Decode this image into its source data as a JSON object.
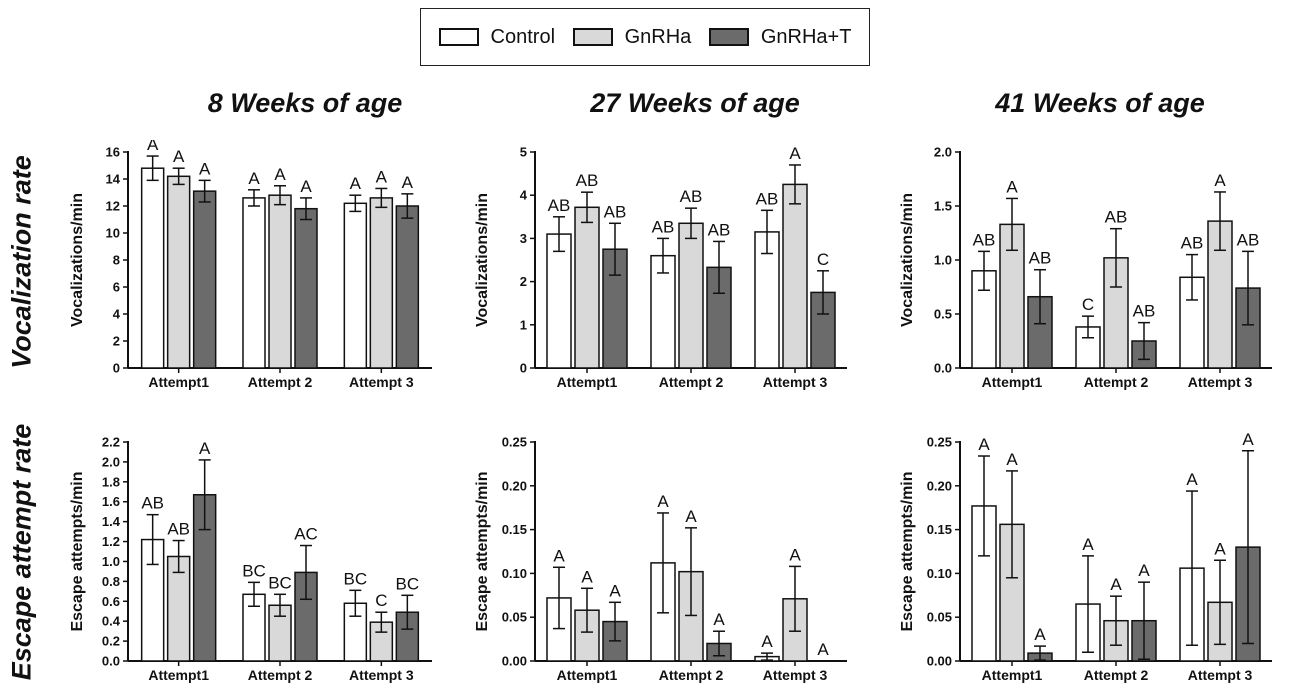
{
  "legend": {
    "items": [
      {
        "label": "Control",
        "color": "#ffffff"
      },
      {
        "label": "GnRHa",
        "color": "#d9d9d9"
      },
      {
        "label": "GnRHa+T",
        "color": "#6b6b6b"
      }
    ]
  },
  "column_titles": [
    "8 Weeks of age",
    "27 Weeks of age",
    "41 Weeks of age"
  ],
  "row_titles": [
    "Vocalization rate",
    "Escape attempt rate"
  ],
  "chart_data": [
    {
      "type": "bar",
      "title": "8 Weeks of age",
      "ylabel": "Vocalizations/min",
      "categories": [
        "Attempt1",
        "Attempt 2",
        "Attempt 3"
      ],
      "ylim": [
        0,
        16
      ],
      "yticks": [
        0,
        2,
        4,
        6,
        8,
        10,
        12,
        14,
        16
      ],
      "ytick_labels": [
        "0",
        "2",
        "4",
        "6",
        "8",
        "10",
        "12",
        "14",
        "16"
      ],
      "series": [
        {
          "name": "Control",
          "values": [
            14.8,
            12.6,
            12.2
          ],
          "errors": [
            0.9,
            0.6,
            0.6
          ],
          "letters": [
            "A",
            "A",
            "A"
          ]
        },
        {
          "name": "GnRHa",
          "values": [
            14.2,
            12.8,
            12.6
          ],
          "errors": [
            0.6,
            0.7,
            0.7
          ],
          "letters": [
            "A",
            "A",
            "A"
          ]
        },
        {
          "name": "GnRHa+T",
          "values": [
            13.1,
            11.8,
            12.0
          ],
          "errors": [
            0.8,
            0.8,
            0.9
          ],
          "letters": [
            "A",
            "A",
            "A"
          ]
        }
      ]
    },
    {
      "type": "bar",
      "title": "27 Weeks of age",
      "ylabel": "Vocalizations/min",
      "categories": [
        "Attempt1",
        "Attempt 2",
        "Attempt 3"
      ],
      "ylim": [
        0,
        5
      ],
      "yticks": [
        0,
        1,
        2,
        3,
        4,
        5
      ],
      "ytick_labels": [
        "0",
        "1",
        "2",
        "3",
        "4",
        "5"
      ],
      "series": [
        {
          "name": "Control",
          "values": [
            3.1,
            2.6,
            3.15
          ],
          "errors": [
            0.4,
            0.4,
            0.5
          ],
          "letters": [
            "AB",
            "AB",
            "AB"
          ]
        },
        {
          "name": "GnRHa",
          "values": [
            3.72,
            3.35,
            4.25
          ],
          "errors": [
            0.35,
            0.35,
            0.45
          ],
          "letters": [
            "AB",
            "AB",
            "A"
          ]
        },
        {
          "name": "GnRHa+T",
          "values": [
            2.75,
            2.33,
            1.75
          ],
          "errors": [
            0.6,
            0.6,
            0.5
          ],
          "letters": [
            "AB",
            "AB",
            "C"
          ]
        }
      ]
    },
    {
      "type": "bar",
      "title": "41 Weeks of age",
      "ylabel": "Vocalizations/min",
      "categories": [
        "Attempt1",
        "Attempt 2",
        "Attempt 3"
      ],
      "ylim": [
        0,
        2.0
      ],
      "yticks": [
        0,
        0.5,
        1.0,
        1.5,
        2.0
      ],
      "ytick_labels": [
        "0.0",
        "0.5",
        "1.0",
        "1.5",
        "2.0"
      ],
      "series": [
        {
          "name": "Control",
          "values": [
            0.9,
            0.38,
            0.84
          ],
          "errors": [
            0.18,
            0.1,
            0.21
          ],
          "letters": [
            "AB",
            "C",
            "AB"
          ]
        },
        {
          "name": "GnRHa",
          "values": [
            1.33,
            1.02,
            1.36
          ],
          "errors": [
            0.24,
            0.27,
            0.27
          ],
          "letters": [
            "A",
            "AB",
            "A"
          ]
        },
        {
          "name": "GnRHa+T",
          "values": [
            0.66,
            0.25,
            0.74
          ],
          "errors": [
            0.25,
            0.17,
            0.34
          ],
          "letters": [
            "AB",
            "AB",
            "AB"
          ]
        }
      ]
    },
    {
      "type": "bar",
      "title": "8 Weeks of age",
      "ylabel": "Escape attempts/min",
      "categories": [
        "Attempt1",
        "Attempt 2",
        "Attempt 3"
      ],
      "ylim": [
        0,
        2.2
      ],
      "yticks": [
        0,
        0.2,
        0.4,
        0.6,
        0.8,
        1.0,
        1.2,
        1.4,
        1.6,
        1.8,
        2.0,
        2.2
      ],
      "ytick_labels": [
        "0.0",
        "0.2",
        "0.4",
        "0.6",
        "0.8",
        "1.0",
        "1.2",
        "1.4",
        "1.6",
        "1.8",
        "2.0",
        "2.2"
      ],
      "series": [
        {
          "name": "Control",
          "values": [
            1.22,
            0.67,
            0.58
          ],
          "errors": [
            0.25,
            0.12,
            0.13
          ],
          "letters": [
            "AB",
            "BC",
            "BC"
          ]
        },
        {
          "name": "GnRHa",
          "values": [
            1.05,
            0.56,
            0.39
          ],
          "errors": [
            0.16,
            0.11,
            0.1
          ],
          "letters": [
            "AB",
            "BC",
            "C"
          ]
        },
        {
          "name": "GnRHa+T",
          "values": [
            1.67,
            0.89,
            0.49
          ],
          "errors": [
            0.35,
            0.27,
            0.17
          ],
          "letters": [
            "A",
            "AC",
            "BC"
          ]
        }
      ]
    },
    {
      "type": "bar",
      "title": "27 Weeks of age",
      "ylabel": "Escape attempts/min",
      "categories": [
        "Attempt1",
        "Attempt 2",
        "Attempt 3"
      ],
      "ylim": [
        0,
        0.25
      ],
      "yticks": [
        0,
        0.05,
        0.1,
        0.15,
        0.2,
        0.25
      ],
      "ytick_labels": [
        "0.00",
        "0.05",
        "0.10",
        "0.15",
        "0.20",
        "0.25"
      ],
      "series": [
        {
          "name": "Control",
          "values": [
            0.072,
            0.112,
            0.005
          ],
          "errors": [
            0.035,
            0.057,
            0.004
          ],
          "letters": [
            "A",
            "A",
            "A"
          ]
        },
        {
          "name": "GnRHa",
          "values": [
            0.058,
            0.102,
            0.071
          ],
          "errors": [
            0.025,
            0.05,
            0.037
          ],
          "letters": [
            "A",
            "A",
            "A"
          ]
        },
        {
          "name": "GnRHa+T",
          "values": [
            0.045,
            0.02,
            0.0
          ],
          "errors": [
            0.022,
            0.014,
            0.0
          ],
          "letters": [
            "A",
            "A",
            "A"
          ]
        }
      ]
    },
    {
      "type": "bar",
      "title": "41 Weeks of age",
      "ylabel": "Escape attempts/min",
      "categories": [
        "Attempt1",
        "Attempt 2",
        "Attempt 3"
      ],
      "ylim": [
        0,
        0.25
      ],
      "yticks": [
        0,
        0.05,
        0.1,
        0.15,
        0.2,
        0.25
      ],
      "ytick_labels": [
        "0.00",
        "0.05",
        "0.10",
        "0.15",
        "0.20",
        "0.25"
      ],
      "series": [
        {
          "name": "Control",
          "values": [
            0.177,
            0.065,
            0.106
          ],
          "errors": [
            0.057,
            0.055,
            0.088
          ],
          "letters": [
            "A",
            "A",
            "A"
          ]
        },
        {
          "name": "GnRHa",
          "values": [
            0.156,
            0.046,
            0.067
          ],
          "errors": [
            0.061,
            0.028,
            0.048
          ],
          "letters": [
            "A",
            "A",
            "A"
          ]
        },
        {
          "name": "GnRHa+T",
          "values": [
            0.009,
            0.046,
            0.13
          ],
          "errors": [
            0.008,
            0.044,
            0.11
          ],
          "letters": [
            "A",
            "A",
            "A"
          ]
        }
      ]
    }
  ]
}
